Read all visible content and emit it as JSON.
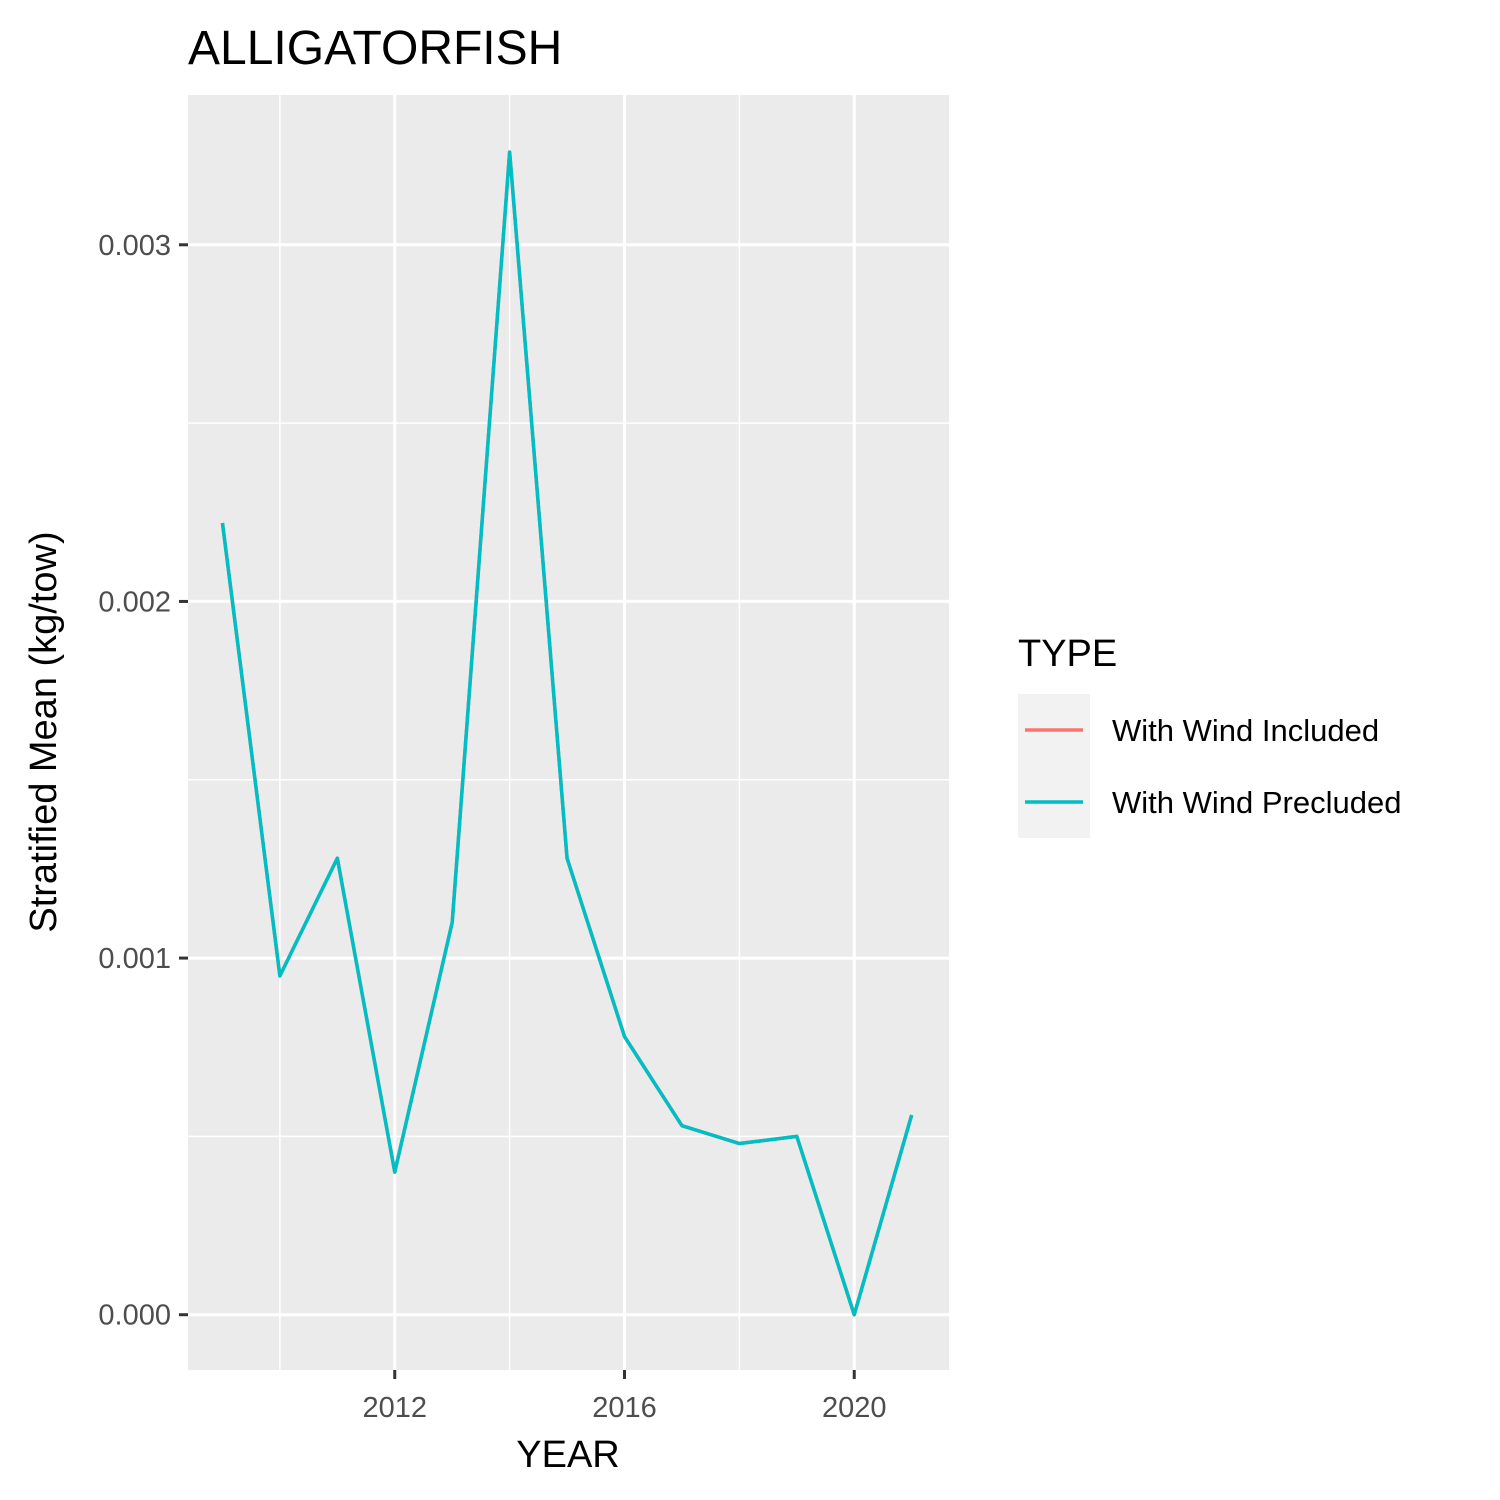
{
  "chart_data": {
    "type": "line",
    "title": "ALLIGATORFISH",
    "xlabel": "YEAR",
    "ylabel": "Stratified Mean (kg/tow)",
    "x_ticks": [
      2012,
      2016,
      2020
    ],
    "x_tick_labels": [
      "2012",
      "2016",
      "2020"
    ],
    "y_ticks": [
      0,
      0.001,
      0.002,
      0.003
    ],
    "y_tick_labels": [
      "0.000",
      "0.001",
      "0.002",
      "0.003"
    ],
    "xlim": [
      2008.4,
      2021.65
    ],
    "ylim": [
      -0.000155,
      0.00342
    ],
    "grid": true,
    "legend": {
      "title": "TYPE",
      "position": "right",
      "entries": [
        {
          "label": "With Wind Included",
          "color": "#F8766D"
        },
        {
          "label": "With Wind Precluded",
          "color": "#00BFC4"
        }
      ]
    },
    "x": [
      2009,
      2010,
      2011,
      2012,
      2013,
      2014,
      2015,
      2016,
      2017,
      2018,
      2019,
      2020,
      2021
    ],
    "series": [
      {
        "name": "With Wind Included",
        "color": "#F8766D",
        "values": [
          0.00222,
          0.00095,
          0.00128,
          0.0004,
          0.0011,
          0.00326,
          0.00128,
          0.00078,
          0.00053,
          0.00048,
          0.0005,
          0.0,
          0.00056
        ]
      },
      {
        "name": "With Wind Precluded",
        "color": "#00BFC4",
        "values": [
          0.00222,
          0.00095,
          0.00128,
          0.0004,
          0.0011,
          0.00326,
          0.00128,
          0.00078,
          0.00053,
          0.00048,
          0.0005,
          0.0,
          0.00056
        ]
      }
    ]
  }
}
